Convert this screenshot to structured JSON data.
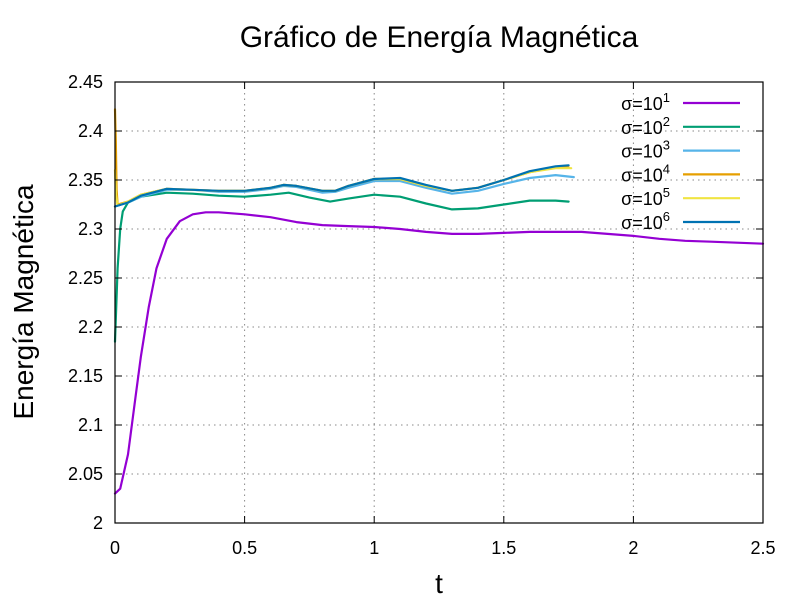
{
  "chart_data": {
    "type": "line",
    "title": "Gráfico de Energía Magnética",
    "xlabel": "t",
    "ylabel": "Energía Magnética",
    "xlim": [
      0,
      2.5
    ],
    "ylim": [
      2.0,
      2.45
    ],
    "grid": true,
    "legend_position": "top-right",
    "x_ticks": [
      "0",
      "0.5",
      "1",
      "1.5",
      "2",
      "2.5"
    ],
    "y_ticks": [
      "2",
      "2.05",
      "2.1",
      "2.15",
      "2.2",
      "2.25",
      "2.3",
      "2.35",
      "2.4",
      "2.45"
    ],
    "series": [
      {
        "name": "σ=10¹",
        "base": "σ=10",
        "exp": "1",
        "color": "#9400d3",
        "points": [
          [
            0,
            2.03
          ],
          [
            0.02,
            2.035
          ],
          [
            0.05,
            2.07
          ],
          [
            0.08,
            2.13
          ],
          [
            0.1,
            2.17
          ],
          [
            0.13,
            2.22
          ],
          [
            0.16,
            2.26
          ],
          [
            0.2,
            2.29
          ],
          [
            0.25,
            2.308
          ],
          [
            0.3,
            2.315
          ],
          [
            0.35,
            2.317
          ],
          [
            0.4,
            2.317
          ],
          [
            0.5,
            2.315
          ],
          [
            0.6,
            2.312
          ],
          [
            0.7,
            2.307
          ],
          [
            0.8,
            2.304
          ],
          [
            0.9,
            2.303
          ],
          [
            1.0,
            2.302
          ],
          [
            1.1,
            2.3
          ],
          [
            1.2,
            2.297
          ],
          [
            1.3,
            2.295
          ],
          [
            1.4,
            2.295
          ],
          [
            1.5,
            2.296
          ],
          [
            1.6,
            2.297
          ],
          [
            1.7,
            2.297
          ],
          [
            1.8,
            2.297
          ],
          [
            1.9,
            2.295
          ],
          [
            2.0,
            2.293
          ],
          [
            2.1,
            2.29
          ],
          [
            2.2,
            2.288
          ],
          [
            2.3,
            2.287
          ],
          [
            2.4,
            2.286
          ],
          [
            2.5,
            2.285
          ]
        ]
      },
      {
        "name": "σ=10²",
        "base": "σ=10",
        "exp": "2",
        "color": "#009e73",
        "points": [
          [
            0,
            2.185
          ],
          [
            0.01,
            2.26
          ],
          [
            0.02,
            2.3
          ],
          [
            0.03,
            2.318
          ],
          [
            0.05,
            2.327
          ],
          [
            0.1,
            2.333
          ],
          [
            0.2,
            2.337
          ],
          [
            0.3,
            2.336
          ],
          [
            0.4,
            2.334
          ],
          [
            0.5,
            2.333
          ],
          [
            0.6,
            2.335
          ],
          [
            0.67,
            2.337
          ],
          [
            0.75,
            2.332
          ],
          [
            0.83,
            2.328
          ],
          [
            0.9,
            2.331
          ],
          [
            1.0,
            2.335
          ],
          [
            1.1,
            2.333
          ],
          [
            1.2,
            2.326
          ],
          [
            1.3,
            2.32
          ],
          [
            1.4,
            2.321
          ],
          [
            1.5,
            2.325
          ],
          [
            1.6,
            2.329
          ],
          [
            1.7,
            2.329
          ],
          [
            1.75,
            2.328
          ]
        ]
      },
      {
        "name": "σ=10³",
        "base": "σ=10",
        "exp": "3",
        "color": "#56b4e9",
        "points": [
          [
            0,
            2.323
          ],
          [
            0.05,
            2.327
          ],
          [
            0.1,
            2.333
          ],
          [
            0.2,
            2.34
          ],
          [
            0.3,
            2.34
          ],
          [
            0.4,
            2.338
          ],
          [
            0.5,
            2.338
          ],
          [
            0.6,
            2.341
          ],
          [
            0.65,
            2.344
          ],
          [
            0.7,
            2.343
          ],
          [
            0.8,
            2.337
          ],
          [
            0.85,
            2.338
          ],
          [
            0.9,
            2.342
          ],
          [
            1.0,
            2.349
          ],
          [
            1.1,
            2.349
          ],
          [
            1.2,
            2.342
          ],
          [
            1.3,
            2.336
          ],
          [
            1.4,
            2.339
          ],
          [
            1.5,
            2.346
          ],
          [
            1.6,
            2.352
          ],
          [
            1.7,
            2.355
          ],
          [
            1.77,
            2.353
          ]
        ]
      },
      {
        "name": "σ=10⁴",
        "base": "σ=10",
        "exp": "4",
        "color": "#e69f00",
        "points": [
          [
            0,
            2.422
          ],
          [
            0.003,
            2.39
          ],
          [
            0.006,
            2.34
          ],
          [
            0.01,
            2.325
          ],
          [
            0.05,
            2.328
          ],
          [
            0.1,
            2.335
          ],
          [
            0.2,
            2.341
          ],
          [
            0.3,
            2.34
          ],
          [
            0.4,
            2.339
          ],
          [
            0.5,
            2.339
          ],
          [
            0.6,
            2.342
          ],
          [
            0.65,
            2.345
          ],
          [
            0.7,
            2.344
          ],
          [
            0.8,
            2.339
          ],
          [
            0.85,
            2.339
          ],
          [
            0.9,
            2.344
          ],
          [
            1.0,
            2.351
          ],
          [
            1.1,
            2.351
          ],
          [
            1.2,
            2.344
          ],
          [
            1.3,
            2.339
          ],
          [
            1.4,
            2.342
          ],
          [
            1.5,
            2.35
          ],
          [
            1.6,
            2.358
          ],
          [
            1.7,
            2.363
          ],
          [
            1.75,
            2.363
          ]
        ]
      },
      {
        "name": "σ=10⁵",
        "base": "σ=10",
        "exp": "5",
        "color": "#f0e442",
        "points": [
          [
            0,
            2.36
          ],
          [
            0.004,
            2.335
          ],
          [
            0.01,
            2.324
          ],
          [
            0.05,
            2.328
          ],
          [
            0.1,
            2.335
          ],
          [
            0.2,
            2.341
          ],
          [
            0.3,
            2.34
          ],
          [
            0.4,
            2.339
          ],
          [
            0.5,
            2.339
          ],
          [
            0.6,
            2.342
          ],
          [
            0.65,
            2.345
          ],
          [
            0.7,
            2.344
          ],
          [
            0.8,
            2.339
          ],
          [
            0.85,
            2.339
          ],
          [
            0.9,
            2.344
          ],
          [
            1.0,
            2.351
          ],
          [
            1.1,
            2.351
          ],
          [
            1.2,
            2.344
          ],
          [
            1.3,
            2.339
          ],
          [
            1.4,
            2.342
          ],
          [
            1.5,
            2.35
          ],
          [
            1.6,
            2.358
          ],
          [
            1.7,
            2.362
          ],
          [
            1.76,
            2.362
          ]
        ]
      },
      {
        "name": "σ=10⁶",
        "base": "σ=10",
        "exp": "6",
        "color": "#0072b2",
        "points": [
          [
            0,
            2.323
          ],
          [
            0.05,
            2.327
          ],
          [
            0.1,
            2.334
          ],
          [
            0.2,
            2.341
          ],
          [
            0.3,
            2.34
          ],
          [
            0.4,
            2.339
          ],
          [
            0.5,
            2.339
          ],
          [
            0.6,
            2.342
          ],
          [
            0.65,
            2.345
          ],
          [
            0.7,
            2.344
          ],
          [
            0.8,
            2.339
          ],
          [
            0.85,
            2.339
          ],
          [
            0.9,
            2.344
          ],
          [
            1.0,
            2.351
          ],
          [
            1.1,
            2.352
          ],
          [
            1.2,
            2.345
          ],
          [
            1.3,
            2.339
          ],
          [
            1.4,
            2.342
          ],
          [
            1.5,
            2.35
          ],
          [
            1.6,
            2.359
          ],
          [
            1.7,
            2.364
          ],
          [
            1.75,
            2.365
          ]
        ]
      }
    ]
  }
}
